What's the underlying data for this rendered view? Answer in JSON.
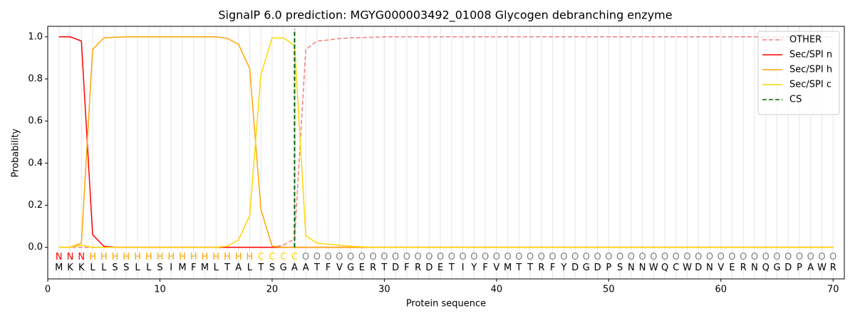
{
  "chart_data": {
    "type": "line",
    "title": "SignalP 6.0 prediction: MGYG000003492_01008 Glycogen debranching enzyme",
    "x_label": "Protein sequence",
    "y_label": "Probability",
    "xlim": [
      0,
      71
    ],
    "ylim": [
      -0.15,
      1.05
    ],
    "xticks": [
      0,
      10,
      20,
      30,
      40,
      50,
      60,
      70
    ],
    "yticks": [
      {
        "value": 0,
        "label": "0.0"
      },
      {
        "value": 0.2,
        "label": "0.2"
      },
      {
        "value": 0.4,
        "label": "0.4"
      },
      {
        "value": 0.6,
        "label": "0.6"
      },
      {
        "value": 0.8,
        "label": "0.8"
      },
      {
        "value": 1,
        "label": "1.0"
      }
    ],
    "grid": true,
    "legend": "upper right",
    "x": [
      1,
      2,
      3,
      4,
      5,
      6,
      7,
      8,
      9,
      10,
      11,
      12,
      13,
      14,
      15,
      16,
      17,
      18,
      19,
      20,
      21,
      22,
      23,
      24,
      25,
      26,
      27,
      28,
      29,
      30,
      31,
      32,
      33,
      34,
      35,
      36,
      37,
      38,
      39,
      40,
      41,
      42,
      43,
      44,
      45,
      46,
      47,
      48,
      49,
      50,
      51,
      52,
      53,
      54,
      55,
      56,
      57,
      58,
      59,
      60,
      61,
      62,
      63,
      64,
      65,
      66,
      67,
      68,
      69,
      70
    ],
    "residues": [
      "M",
      "K",
      "K",
      "L",
      "L",
      "S",
      "S",
      "L",
      "L",
      "S",
      "I",
      "M",
      "F",
      "M",
      "L",
      "T",
      "A",
      "L",
      "T",
      "S",
      "G",
      "A",
      "A",
      "T",
      "F",
      "V",
      "G",
      "E",
      "R",
      "T",
      "D",
      "F",
      "R",
      "D",
      "E",
      "T",
      "I",
      "Y",
      "F",
      "V",
      "M",
      "T",
      "T",
      "R",
      "F",
      "Y",
      "D",
      "G",
      "D",
      "P",
      "S",
      "N",
      "N",
      "W",
      "Q",
      "C",
      "W",
      "D",
      "N",
      "V",
      "E",
      "R",
      "N",
      "Q",
      "G",
      "D",
      "P",
      "A",
      "W",
      "R"
    ],
    "regions": [
      "N",
      "N",
      "N",
      "H",
      "H",
      "H",
      "H",
      "H",
      "H",
      "H",
      "H",
      "H",
      "H",
      "H",
      "H",
      "H",
      "H",
      "H",
      "C",
      "C",
      "C",
      "C",
      "O",
      "O",
      "O",
      "O",
      "O",
      "O",
      "O",
      "O",
      "O",
      "O",
      "O",
      "O",
      "O",
      "O",
      "O",
      "O",
      "O",
      "O",
      "O",
      "O",
      "O",
      "O",
      "O",
      "O",
      "O",
      "O",
      "O",
      "O",
      "O",
      "O",
      "O",
      "O",
      "O",
      "O",
      "O",
      "O",
      "O",
      "O",
      "O",
      "O",
      "O",
      "O",
      "O",
      "O",
      "O",
      "O",
      "O",
      "O"
    ],
    "region_colors": {
      "N": "#ff0000",
      "H": "#ffa500",
      "C": "#ffd700",
      "O": "#808080"
    },
    "series": [
      {
        "name": "OTHER",
        "color": "#f08080",
        "dash": true,
        "values": [
          0,
          0,
          0,
          0,
          0,
          0,
          0,
          0,
          0,
          0,
          0,
          0,
          0,
          0,
          0,
          0,
          0,
          0,
          0,
          0,
          0.01,
          0.04,
          0.94,
          0.98,
          0.985,
          0.992,
          0.995,
          0.997,
          0.998,
          1,
          1,
          1,
          1,
          1,
          1,
          1,
          1,
          1,
          1,
          1,
          1,
          1,
          1,
          1,
          1,
          1,
          1,
          1,
          1,
          1,
          1,
          1,
          1,
          1,
          1,
          1,
          1,
          1,
          1,
          1,
          1,
          1,
          1,
          1,
          1,
          1,
          1,
          1,
          1,
          1
        ]
      },
      {
        "name": "Sec/SPI n",
        "color": "#ff0000",
        "dash": false,
        "values": [
          1,
          1,
          0.98,
          0.06,
          0.005,
          0,
          0,
          0,
          0,
          0,
          0,
          0,
          0,
          0,
          0,
          0,
          0,
          0,
          0,
          0,
          0,
          0,
          0,
          0,
          0,
          0,
          0,
          0,
          0,
          0,
          0,
          0,
          0,
          0,
          0,
          0,
          0,
          0,
          0,
          0,
          0,
          0,
          0,
          0,
          0,
          0,
          0,
          0,
          0,
          0,
          0,
          0,
          0,
          0,
          0,
          0,
          0,
          0,
          0,
          0,
          0,
          0,
          0,
          0,
          0,
          0,
          0,
          0,
          0,
          0
        ]
      },
      {
        "name": "Sec/SPI h",
        "color": "#ffa500",
        "dash": false,
        "values": [
          0,
          0,
          0.02,
          0.94,
          0.995,
          0.998,
          1,
          1,
          1,
          1,
          1,
          1,
          1,
          1,
          1,
          0.993,
          0.965,
          0.85,
          0.18,
          0.005,
          0,
          0,
          0,
          0,
          0,
          0,
          0,
          0,
          0,
          0,
          0,
          0,
          0,
          0,
          0,
          0,
          0,
          0,
          0,
          0,
          0,
          0,
          0,
          0,
          0,
          0,
          0,
          0,
          0,
          0,
          0,
          0,
          0,
          0,
          0,
          0,
          0,
          0,
          0,
          0,
          0,
          0,
          0,
          0,
          0,
          0,
          0,
          0,
          0,
          0
        ]
      },
      {
        "name": "Sec/SPI c",
        "color": "#ffd700",
        "dash": false,
        "values": [
          0,
          0,
          0.01,
          0,
          0,
          0,
          0,
          0,
          0,
          0,
          0,
          0,
          0,
          0,
          0,
          0.005,
          0.035,
          0.15,
          0.82,
          0.995,
          0.995,
          0.96,
          0.055,
          0.02,
          0.015,
          0.01,
          0.005,
          0.002,
          0,
          0,
          0,
          0,
          0,
          0,
          0,
          0,
          0,
          0,
          0,
          0,
          0,
          0,
          0,
          0,
          0,
          0,
          0,
          0,
          0,
          0,
          0,
          0,
          0,
          0,
          0,
          0,
          0,
          0,
          0,
          0,
          0,
          0,
          0,
          0,
          0,
          0,
          0,
          0,
          0,
          0
        ]
      }
    ],
    "cs": {
      "name": "CS",
      "x": 22,
      "color": "#006400"
    }
  }
}
